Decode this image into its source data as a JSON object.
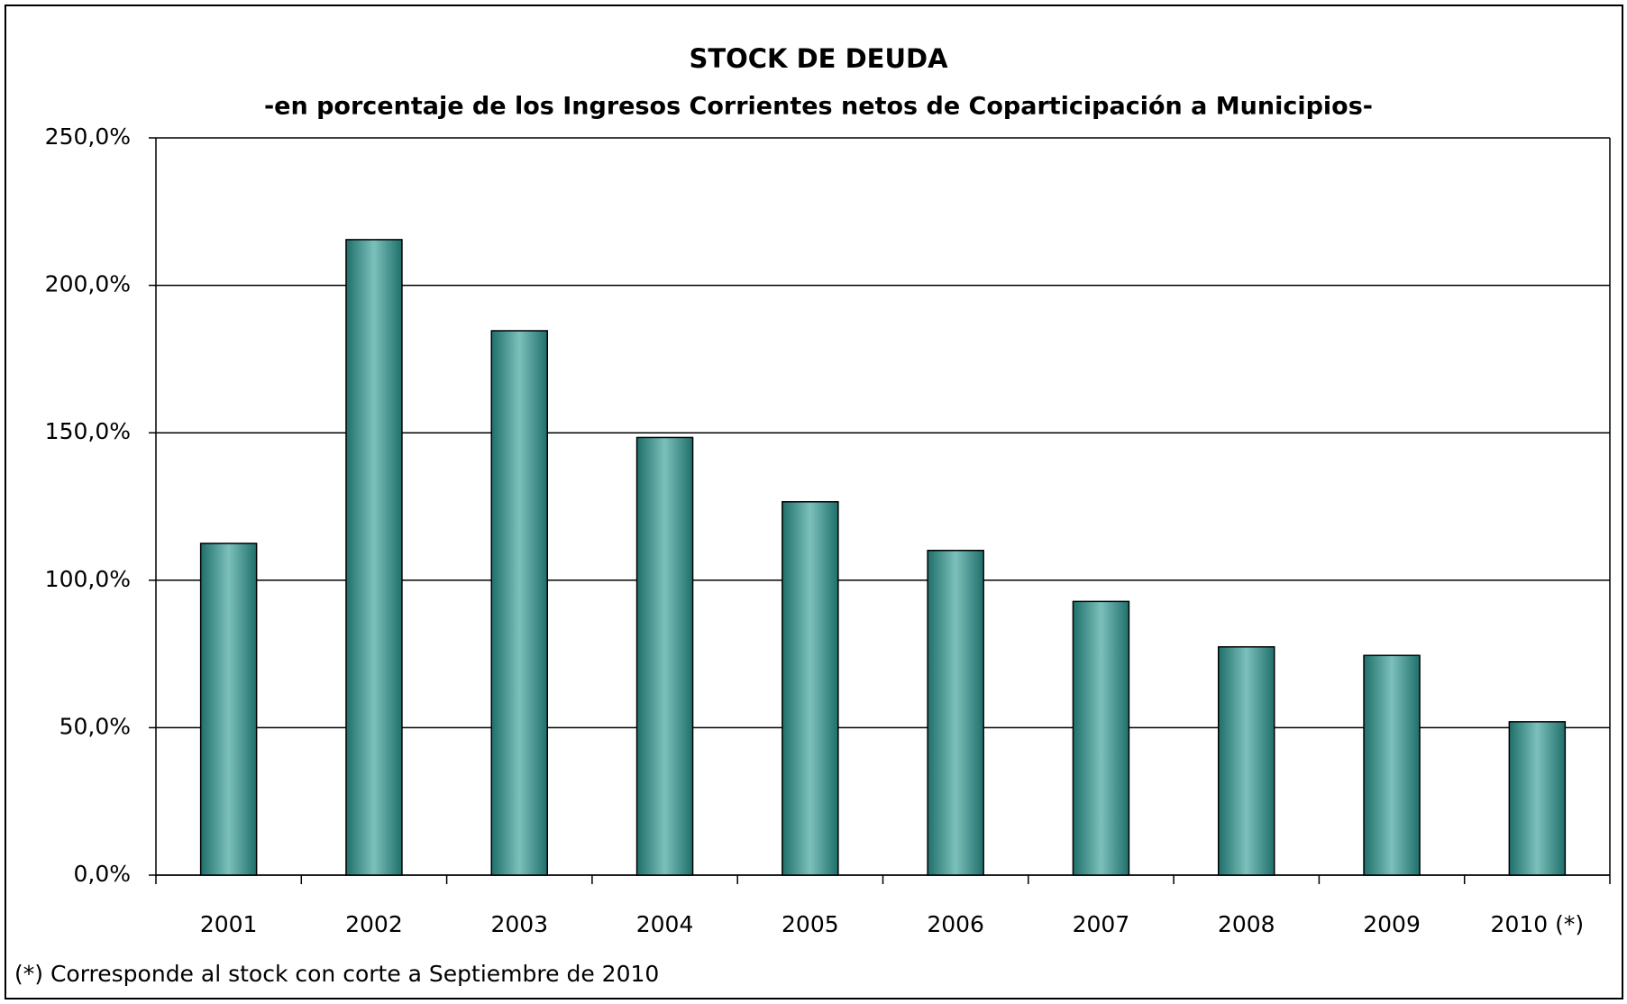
{
  "chart_data": {
    "type": "bar",
    "title": "STOCK DE DEUDA",
    "subtitle": "-en porcentaje de los Ingresos Corrientes netos de Coparticipación a Municipios-",
    "annotation": "(*) Corresponde al stock con corte a Septiembre de 2010",
    "categories": [
      "2001",
      "2002",
      "2003",
      "2004",
      "2005",
      "2006",
      "2007",
      "2008",
      "2009",
      "2010 (*)"
    ],
    "values": [
      112.5,
      215.5,
      184.6,
      148.4,
      126.6,
      110.1,
      92.8,
      77.4,
      74.5,
      52.0
    ],
    "color": "#2e8b87",
    "ylim": [
      0,
      250
    ],
    "yticks": [
      {
        "value": 0,
        "label": "0,0%"
      },
      {
        "value": 50,
        "label": "50,0%"
      },
      {
        "value": 100,
        "label": "100,0%"
      },
      {
        "value": 150,
        "label": "150,0%"
      },
      {
        "value": 200,
        "label": "200,0%"
      },
      {
        "value": 250,
        "label": "250,0%"
      }
    ],
    "grid": true
  }
}
